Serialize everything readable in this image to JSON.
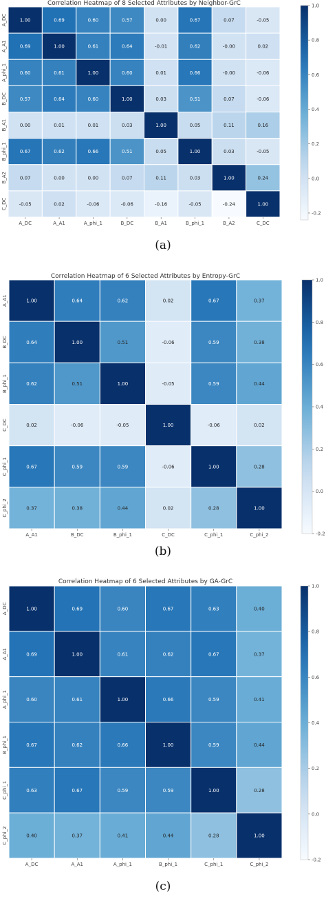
{
  "captions": [
    "(a)",
    "(b)",
    "(c)"
  ],
  "chart_data": [
    {
      "type": "heatmap",
      "title": "Correlation Heatmap of 8 Selected Attributes by Neighbor-GrC",
      "xlabels": [
        "A_DC",
        "A_A1",
        "A_phi_1",
        "B_DC",
        "B_A1",
        "B_phi_1",
        "B_A2",
        "C_DC"
      ],
      "ylabels": [
        "A_DC",
        "A_A1",
        "A_phi_1",
        "B_DC",
        "B_A1",
        "B_phi_1",
        "B_A2",
        "C_DC"
      ],
      "values": [
        [
          1.0,
          0.69,
          0.6,
          0.57,
          0.0,
          0.67,
          0.07,
          -0.05
        ],
        [
          0.69,
          1.0,
          0.61,
          0.64,
          -0.01,
          0.62,
          -0.0,
          0.02
        ],
        [
          0.6,
          0.61,
          1.0,
          0.6,
          0.01,
          0.66,
          -0.0,
          -0.06
        ],
        [
          0.57,
          0.64,
          0.6,
          1.0,
          0.03,
          0.51,
          0.07,
          -0.06
        ],
        [
          0.0,
          0.01,
          0.01,
          0.03,
          1.0,
          0.05,
          0.11,
          0.16
        ],
        [
          0.67,
          0.62,
          0.66,
          0.51,
          0.05,
          1.0,
          0.03,
          -0.05
        ],
        [
          0.07,
          0.0,
          0.0,
          0.07,
          0.11,
          0.03,
          1.0,
          0.24
        ],
        [
          -0.05,
          0.02,
          -0.06,
          -0.06,
          -0.16,
          -0.05,
          -0.24,
          1.0
        ]
      ],
      "cell_labels": [
        [
          "1.00",
          "0.69",
          "0.60",
          "0.57",
          "0.00",
          "0.67",
          "0.07",
          "-0.05"
        ],
        [
          "0.69",
          "1.00",
          "0.61",
          "0.64",
          "-0.01",
          "0.62",
          "-0.00",
          "0.02"
        ],
        [
          "0.60",
          "0.61",
          "1.00",
          "0.60",
          "0.01",
          "0.66",
          "-0.00",
          "-0.06"
        ],
        [
          "0.57",
          "0.64",
          "0.60",
          "1.00",
          "0.03",
          "0.51",
          "0.07",
          "-0.06"
        ],
        [
          "0.00",
          "0.01",
          "0.01",
          "0.03",
          "1.00",
          "0.05",
          "0.11",
          "0.16"
        ],
        [
          "0.67",
          "0.62",
          "0.66",
          "0.51",
          "0.05",
          "1.00",
          "0.03",
          "-0.05"
        ],
        [
          "0.07",
          "0.00",
          "0.00",
          "0.07",
          "0.11",
          "0.03",
          "1.00",
          "0.24"
        ],
        [
          "-0.05",
          "0.02",
          "-0.06",
          "-0.06",
          "-0.16",
          "-0.05",
          "-0.24",
          "1.00"
        ]
      ],
      "colorbar_ticks": [
        1.0,
        0.8,
        0.6,
        0.4,
        0.2,
        0.0,
        -0.2
      ],
      "colorbar_labels": [
        "1.0",
        "0.8",
        "0.6",
        "0.4",
        "0.2",
        "0.0",
        "-0.2"
      ],
      "vmin": -0.24,
      "vmax": 1.0
    },
    {
      "type": "heatmap",
      "title": "Correlation Heatmap of 6 Selected Attributes by Entropy-GrC",
      "xlabels": [
        "A_A1",
        "B_DC",
        "B_phi_1",
        "C_DC",
        "C_phi_1",
        "C_phi_2"
      ],
      "ylabels": [
        "A_A1",
        "B_DC",
        "B_phi_1",
        "C_DC",
        "C_phi_1",
        "C_phi_2"
      ],
      "values": [
        [
          1.0,
          0.64,
          0.62,
          0.02,
          0.67,
          0.37
        ],
        [
          0.64,
          1.0,
          0.51,
          -0.06,
          0.59,
          0.38
        ],
        [
          0.62,
          0.51,
          1.0,
          -0.05,
          0.59,
          0.44
        ],
        [
          0.02,
          -0.06,
          -0.05,
          1.0,
          -0.06,
          0.02
        ],
        [
          0.67,
          0.59,
          0.59,
          -0.06,
          1.0,
          0.28
        ],
        [
          0.37,
          0.38,
          0.44,
          0.02,
          0.28,
          1.0
        ]
      ],
      "cell_labels": [
        [
          "1.00",
          "0.64",
          "0.62",
          "0.02",
          "0.67",
          "0.37"
        ],
        [
          "0.64",
          "1.00",
          "0.51",
          "-0.06",
          "0.59",
          "0.38"
        ],
        [
          "0.62",
          "0.51",
          "1.00",
          "-0.05",
          "0.59",
          "0.44"
        ],
        [
          "0.02",
          "-0.06",
          "-0.05",
          "1.00",
          "-0.06",
          "0.02"
        ],
        [
          "0.67",
          "0.59",
          "0.59",
          "-0.06",
          "1.00",
          "0.28"
        ],
        [
          "0.37",
          "0.38",
          "0.44",
          "0.02",
          "0.28",
          "1.00"
        ]
      ],
      "colorbar_ticks": [
        1.0,
        0.8,
        0.6,
        0.4,
        0.2,
        0.0,
        -0.2
      ],
      "colorbar_labels": [
        "1.0",
        "0.8",
        "0.6",
        "0.4",
        "0.2",
        "0.0",
        "-0.2"
      ],
      "vmin": -0.2,
      "vmax": 1.0
    },
    {
      "type": "heatmap",
      "title": "Correlation Heatmap of 6 Selected Attributes by GA-GrC",
      "xlabels": [
        "A_DC",
        "A_A1",
        "A_phi_1",
        "B_phi_1",
        "C_phi_1",
        "C_phi_2"
      ],
      "ylabels": [
        "A_DC",
        "A_A1",
        "A_phi_1",
        "B_phi_1",
        "C_phi_1",
        "C_phi_2"
      ],
      "values": [
        [
          1.0,
          0.69,
          0.6,
          0.67,
          0.63,
          0.4
        ],
        [
          0.69,
          1.0,
          0.61,
          0.62,
          0.67,
          0.37
        ],
        [
          0.6,
          0.61,
          1.0,
          0.66,
          0.59,
          0.41
        ],
        [
          0.67,
          0.62,
          0.66,
          1.0,
          0.59,
          0.44
        ],
        [
          0.63,
          0.67,
          0.59,
          0.59,
          1.0,
          0.28
        ],
        [
          0.4,
          0.37,
          0.41,
          0.44,
          0.28,
          1.0
        ]
      ],
      "cell_labels": [
        [
          "1.00",
          "0.69",
          "0.60",
          "0.67",
          "0.63",
          "0.40"
        ],
        [
          "0.69",
          "1.00",
          "0.61",
          "0.62",
          "0.67",
          "0.37"
        ],
        [
          "0.60",
          "0.61",
          "1.00",
          "0.66",
          "0.59",
          "0.41"
        ],
        [
          "0.67",
          "0.62",
          "0.66",
          "1.00",
          "0.59",
          "0.44"
        ],
        [
          "0.63",
          "0.67",
          "0.59",
          "0.59",
          "1.00",
          "0.28"
        ],
        [
          "0.40",
          "0.37",
          "0.41",
          "0.44",
          "0.28",
          "1.00"
        ]
      ],
      "colorbar_ticks": [
        1.0,
        0.8,
        0.6,
        0.4,
        0.2,
        0.0,
        -0.2
      ],
      "colorbar_labels": [
        "1.0",
        "0.8",
        "0.6",
        "0.4",
        "0.2",
        "0.0",
        "-0.2"
      ],
      "vmin": -0.2,
      "vmax": 1.0
    }
  ],
  "colors": {
    "low": "#f7fbff",
    "mid": "#6baed6",
    "high": "#08306b",
    "dark_text": "#262626",
    "light_text": "#ffffff"
  }
}
